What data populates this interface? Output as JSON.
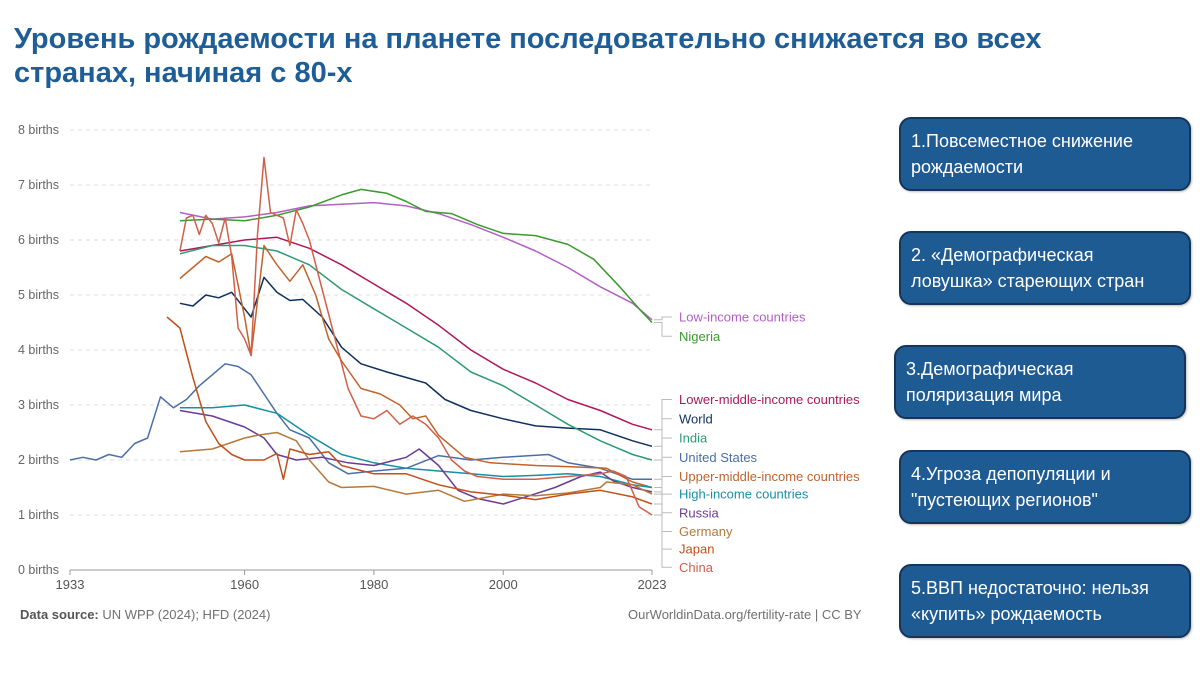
{
  "title": "Уровень рождаемости на планете последовательно снижается во всех странах, начиная с 80-х",
  "source": {
    "label": "Data source:",
    "text": "UN WPP (2024); HFD (2024)"
  },
  "credit": "OurWorldinData.org/fertility-rate | CC BY",
  "boxes": [
    {
      "text": "1.Повсеместное снижение рождаемости"
    },
    {
      "text": "2. «Демографическая ловушка» стареющих стран"
    },
    {
      "text": "3.Демографическая поляризация мира"
    },
    {
      "text": "4.Угроза депопуляции и \"пустеющих регионов\""
    },
    {
      "text": "5.ВВП недостаточно: нельзя «купить» рождаемость"
    }
  ],
  "chart_data": {
    "type": "line",
    "xlim": [
      1933,
      2023
    ],
    "ylim": [
      0,
      8
    ],
    "x_ticks": [
      1933,
      1960,
      1980,
      2000,
      2023
    ],
    "y_ticks": [
      0,
      1,
      2,
      3,
      4,
      5,
      6,
      7,
      8
    ],
    "y_tick_suffix": " births",
    "grid": true,
    "legend": "right",
    "series": [
      {
        "name": "Low-income countries",
        "color": "#b45fc6",
        "legend_y": 4.6,
        "points": [
          [
            1950,
            6.5
          ],
          [
            1955,
            6.38
          ],
          [
            1960,
            6.42
          ],
          [
            1965,
            6.5
          ],
          [
            1970,
            6.62
          ],
          [
            1975,
            6.65
          ],
          [
            1980,
            6.68
          ],
          [
            1985,
            6.62
          ],
          [
            1990,
            6.48
          ],
          [
            1995,
            6.28
          ],
          [
            2000,
            6.05
          ],
          [
            2005,
            5.8
          ],
          [
            2010,
            5.5
          ],
          [
            2015,
            5.15
          ],
          [
            2020,
            4.85
          ],
          [
            2023,
            4.55
          ]
        ]
      },
      {
        "name": "Nigeria",
        "color": "#3a9a2d",
        "legend_y": 4.25,
        "points": [
          [
            1950,
            6.35
          ],
          [
            1955,
            6.38
          ],
          [
            1960,
            6.35
          ],
          [
            1965,
            6.45
          ],
          [
            1970,
            6.6
          ],
          [
            1975,
            6.82
          ],
          [
            1978,
            6.92
          ],
          [
            1982,
            6.85
          ],
          [
            1985,
            6.7
          ],
          [
            1988,
            6.52
          ],
          [
            1992,
            6.48
          ],
          [
            1996,
            6.28
          ],
          [
            2000,
            6.12
          ],
          [
            2005,
            6.08
          ],
          [
            2010,
            5.92
          ],
          [
            2014,
            5.65
          ],
          [
            2018,
            5.15
          ],
          [
            2021,
            4.75
          ],
          [
            2023,
            4.5
          ]
        ]
      },
      {
        "name": "Lower-middle-income countries",
        "color": "#b0175a",
        "legend_y": 3.1,
        "points": [
          [
            1950,
            5.8
          ],
          [
            1955,
            5.9
          ],
          [
            1960,
            6.0
          ],
          [
            1965,
            6.05
          ],
          [
            1970,
            5.85
          ],
          [
            1975,
            5.55
          ],
          [
            1980,
            5.2
          ],
          [
            1985,
            4.85
          ],
          [
            1990,
            4.45
          ],
          [
            1995,
            4.0
          ],
          [
            2000,
            3.65
          ],
          [
            2005,
            3.4
          ],
          [
            2010,
            3.1
          ],
          [
            2015,
            2.9
          ],
          [
            2020,
            2.65
          ],
          [
            2023,
            2.55
          ]
        ]
      },
      {
        "name": "World",
        "color": "#10305e",
        "legend_y": 2.75,
        "points": [
          [
            1950,
            4.85
          ],
          [
            1952,
            4.8
          ],
          [
            1954,
            5.0
          ],
          [
            1956,
            4.95
          ],
          [
            1958,
            5.05
          ],
          [
            1960,
            4.75
          ],
          [
            1961,
            4.6
          ],
          [
            1963,
            5.32
          ],
          [
            1965,
            5.05
          ],
          [
            1967,
            4.9
          ],
          [
            1969,
            4.92
          ],
          [
            1972,
            4.6
          ],
          [
            1975,
            4.05
          ],
          [
            1978,
            3.75
          ],
          [
            1982,
            3.6
          ],
          [
            1985,
            3.5
          ],
          [
            1988,
            3.4
          ],
          [
            1991,
            3.1
          ],
          [
            1995,
            2.9
          ],
          [
            2000,
            2.75
          ],
          [
            2005,
            2.62
          ],
          [
            2010,
            2.58
          ],
          [
            2015,
            2.55
          ],
          [
            2020,
            2.35
          ],
          [
            2023,
            2.25
          ]
        ]
      },
      {
        "name": "India",
        "color": "#2f9a72",
        "legend_y": 2.4,
        "points": [
          [
            1950,
            5.75
          ],
          [
            1955,
            5.9
          ],
          [
            1960,
            5.9
          ],
          [
            1965,
            5.8
          ],
          [
            1970,
            5.55
          ],
          [
            1975,
            5.1
          ],
          [
            1980,
            4.75
          ],
          [
            1985,
            4.4
          ],
          [
            1990,
            4.05
          ],
          [
            1995,
            3.6
          ],
          [
            2000,
            3.35
          ],
          [
            2005,
            3.0
          ],
          [
            2010,
            2.65
          ],
          [
            2015,
            2.35
          ],
          [
            2020,
            2.1
          ],
          [
            2023,
            2.0
          ]
        ]
      },
      {
        "name": "United States",
        "color": "#4a6fa6",
        "legend_y": 2.05,
        "points": [
          [
            1933,
            2.0
          ],
          [
            1935,
            2.05
          ],
          [
            1937,
            2.0
          ],
          [
            1939,
            2.1
          ],
          [
            1941,
            2.05
          ],
          [
            1943,
            2.3
          ],
          [
            1945,
            2.4
          ],
          [
            1947,
            3.15
          ],
          [
            1949,
            2.95
          ],
          [
            1951,
            3.1
          ],
          [
            1953,
            3.35
          ],
          [
            1955,
            3.55
          ],
          [
            1957,
            3.75
          ],
          [
            1959,
            3.7
          ],
          [
            1961,
            3.55
          ],
          [
            1963,
            3.2
          ],
          [
            1965,
            2.85
          ],
          [
            1967,
            2.55
          ],
          [
            1970,
            2.4
          ],
          [
            1973,
            1.95
          ],
          [
            1976,
            1.75
          ],
          [
            1980,
            1.8
          ],
          [
            1985,
            1.85
          ],
          [
            1990,
            2.08
          ],
          [
            1995,
            2.0
          ],
          [
            2000,
            2.05
          ],
          [
            2007,
            2.1
          ],
          [
            2010,
            1.95
          ],
          [
            2015,
            1.85
          ],
          [
            2020,
            1.65
          ],
          [
            2023,
            1.65
          ]
        ]
      },
      {
        "name": "Upper-middle-income countries",
        "color": "#c0642b",
        "legend_y": 1.7,
        "points": [
          [
            1950,
            5.3
          ],
          [
            1952,
            5.5
          ],
          [
            1954,
            5.7
          ],
          [
            1956,
            5.6
          ],
          [
            1958,
            5.75
          ],
          [
            1960,
            4.6
          ],
          [
            1961,
            3.9
          ],
          [
            1963,
            5.9
          ],
          [
            1965,
            5.55
          ],
          [
            1967,
            5.25
          ],
          [
            1969,
            5.55
          ],
          [
            1971,
            5.0
          ],
          [
            1973,
            4.2
          ],
          [
            1975,
            3.8
          ],
          [
            1978,
            3.3
          ],
          [
            1981,
            3.2
          ],
          [
            1984,
            3.0
          ],
          [
            1986,
            2.75
          ],
          [
            1988,
            2.8
          ],
          [
            1990,
            2.45
          ],
          [
            1994,
            2.05
          ],
          [
            1998,
            1.95
          ],
          [
            2005,
            1.9
          ],
          [
            2010,
            1.88
          ],
          [
            2016,
            1.85
          ],
          [
            2020,
            1.6
          ],
          [
            2023,
            1.5
          ]
        ]
      },
      {
        "name": "High-income countries",
        "color": "#178fa5",
        "legend_y": 1.38,
        "points": [
          [
            1950,
            2.95
          ],
          [
            1955,
            2.95
          ],
          [
            1960,
            3.0
          ],
          [
            1965,
            2.85
          ],
          [
            1970,
            2.45
          ],
          [
            1975,
            2.1
          ],
          [
            1980,
            1.95
          ],
          [
            1985,
            1.85
          ],
          [
            1990,
            1.8
          ],
          [
            1995,
            1.75
          ],
          [
            2000,
            1.7
          ],
          [
            2005,
            1.72
          ],
          [
            2010,
            1.75
          ],
          [
            2015,
            1.7
          ],
          [
            2020,
            1.55
          ],
          [
            2023,
            1.5
          ]
        ]
      },
      {
        "name": "Russia",
        "color": "#6b3c95",
        "legend_y": 1.04,
        "points": [
          [
            1950,
            2.9
          ],
          [
            1955,
            2.8
          ],
          [
            1960,
            2.6
          ],
          [
            1963,
            2.4
          ],
          [
            1965,
            2.1
          ],
          [
            1968,
            2.0
          ],
          [
            1972,
            2.05
          ],
          [
            1976,
            1.95
          ],
          [
            1980,
            1.9
          ],
          [
            1985,
            2.05
          ],
          [
            1987,
            2.2
          ],
          [
            1990,
            1.9
          ],
          [
            1993,
            1.45
          ],
          [
            1996,
            1.3
          ],
          [
            2000,
            1.2
          ],
          [
            2004,
            1.35
          ],
          [
            2008,
            1.5
          ],
          [
            2012,
            1.7
          ],
          [
            2015,
            1.78
          ],
          [
            2017,
            1.62
          ],
          [
            2020,
            1.5
          ],
          [
            2023,
            1.42
          ]
        ]
      },
      {
        "name": "Germany",
        "color": "#b5793a",
        "legend_y": 0.7,
        "points": [
          [
            1950,
            2.15
          ],
          [
            1955,
            2.2
          ],
          [
            1960,
            2.4
          ],
          [
            1962,
            2.45
          ],
          [
            1965,
            2.5
          ],
          [
            1968,
            2.35
          ],
          [
            1970,
            2.0
          ],
          [
            1973,
            1.6
          ],
          [
            1975,
            1.5
          ],
          [
            1980,
            1.52
          ],
          [
            1985,
            1.38
          ],
          [
            1990,
            1.45
          ],
          [
            1994,
            1.25
          ],
          [
            2000,
            1.38
          ],
          [
            2005,
            1.35
          ],
          [
            2010,
            1.4
          ],
          [
            2015,
            1.5
          ],
          [
            2016,
            1.6
          ],
          [
            2020,
            1.55
          ],
          [
            2023,
            1.38
          ]
        ]
      },
      {
        "name": "Japan",
        "color": "#c24f1c",
        "legend_y": 0.38,
        "points": [
          [
            1948,
            4.6
          ],
          [
            1950,
            4.4
          ],
          [
            1952,
            3.5
          ],
          [
            1954,
            2.7
          ],
          [
            1956,
            2.3
          ],
          [
            1958,
            2.1
          ],
          [
            1960,
            2.0
          ],
          [
            1963,
            2.0
          ],
          [
            1965,
            2.12
          ],
          [
            1966,
            1.65
          ],
          [
            1967,
            2.2
          ],
          [
            1970,
            2.1
          ],
          [
            1973,
            2.15
          ],
          [
            1975,
            1.9
          ],
          [
            1980,
            1.75
          ],
          [
            1985,
            1.75
          ],
          [
            1990,
            1.55
          ],
          [
            1995,
            1.42
          ],
          [
            2000,
            1.36
          ],
          [
            2005,
            1.28
          ],
          [
            2010,
            1.38
          ],
          [
            2015,
            1.45
          ],
          [
            2020,
            1.33
          ],
          [
            2023,
            1.2
          ]
        ]
      },
      {
        "name": "China",
        "color": "#d0604a",
        "legend_y": 0.05,
        "points": [
          [
            1950,
            5.8
          ],
          [
            1951,
            6.4
          ],
          [
            1952,
            6.45
          ],
          [
            1953,
            6.1
          ],
          [
            1954,
            6.45
          ],
          [
            1955,
            6.3
          ],
          [
            1956,
            5.95
          ],
          [
            1957,
            6.4
          ],
          [
            1958,
            5.7
          ],
          [
            1959,
            4.4
          ],
          [
            1960,
            4.2
          ],
          [
            1961,
            3.9
          ],
          [
            1962,
            6.1
          ],
          [
            1963,
            7.5
          ],
          [
            1964,
            6.5
          ],
          [
            1965,
            6.45
          ],
          [
            1966,
            6.4
          ],
          [
            1967,
            5.9
          ],
          [
            1968,
            6.55
          ],
          [
            1969,
            6.3
          ],
          [
            1970,
            6.0
          ],
          [
            1972,
            5.1
          ],
          [
            1974,
            4.2
          ],
          [
            1976,
            3.3
          ],
          [
            1978,
            2.8
          ],
          [
            1980,
            2.75
          ],
          [
            1982,
            2.9
          ],
          [
            1984,
            2.65
          ],
          [
            1986,
            2.8
          ],
          [
            1988,
            2.65
          ],
          [
            1990,
            2.4
          ],
          [
            1992,
            2.0
          ],
          [
            1994,
            1.8
          ],
          [
            1996,
            1.7
          ],
          [
            2000,
            1.65
          ],
          [
            2005,
            1.65
          ],
          [
            2010,
            1.7
          ],
          [
            2015,
            1.75
          ],
          [
            2017,
            1.8
          ],
          [
            2019,
            1.7
          ],
          [
            2021,
            1.15
          ],
          [
            2023,
            1.0
          ]
        ]
      }
    ]
  }
}
